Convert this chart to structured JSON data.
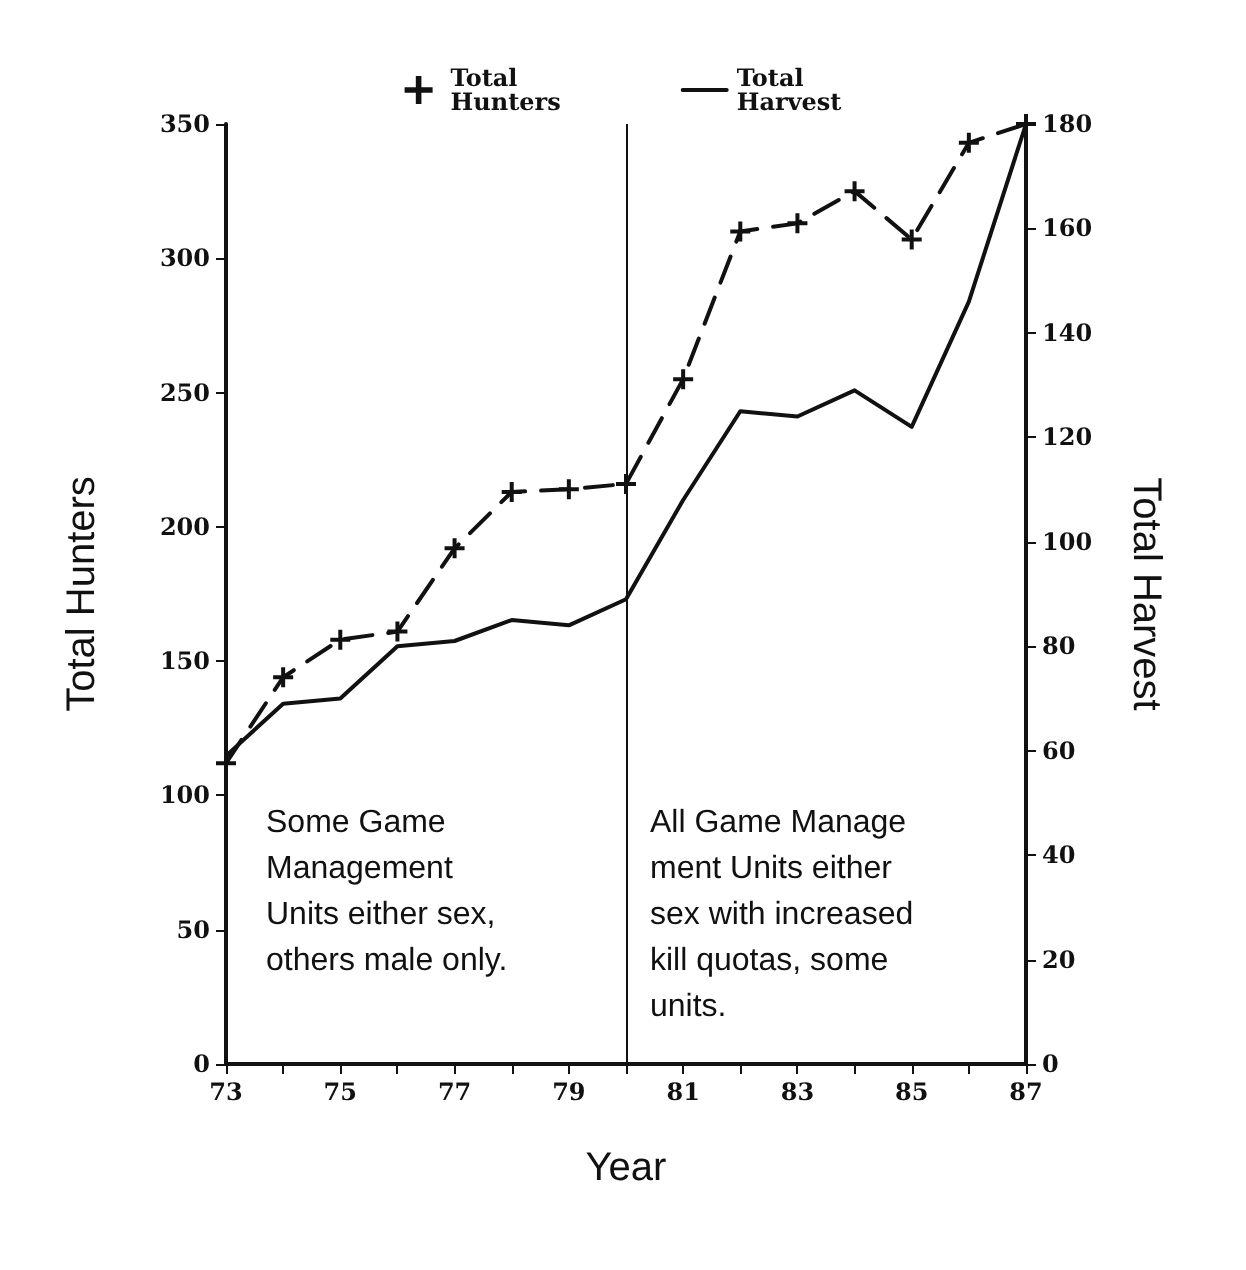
{
  "chart_data": {
    "type": "line",
    "xlabel": "Year",
    "ylabel": "Total Hunters",
    "y2label": "Total Harvest",
    "x": [
      73,
      74,
      75,
      76,
      77,
      78,
      79,
      80,
      81,
      82,
      83,
      84,
      85,
      86,
      87
    ],
    "series": [
      {
        "name": "Total Hunters",
        "color": "#111111",
        "marker": "cross",
        "line_style": "dashed",
        "values": [
          112,
          144,
          158,
          161,
          192,
          213,
          214,
          216,
          255,
          310,
          313,
          325,
          307,
          343,
          350
        ]
      },
      {
        "name": "Total Harvest",
        "color": "#111111",
        "marker": "none",
        "line_style": "solid",
        "axis": "y2",
        "values": [
          59,
          69,
          70,
          80,
          81,
          85,
          84,
          89,
          108,
          125,
          124,
          129,
          122,
          146,
          180
        ]
      }
    ],
    "xlim": [
      73,
      87
    ],
    "xticks": [
      73,
      {
        "value": 74,
        "label": null
      },
      75,
      {
        "value": 76,
        "label": null
      },
      77,
      {
        "value": 78,
        "label": null
      },
      79,
      {
        "value": 80,
        "label": null
      },
      81,
      {
        "value": 82,
        "label": null
      },
      83,
      {
        "value": 84,
        "label": null
      },
      85,
      {
        "value": 86,
        "label": null
      },
      87
    ],
    "ylim": [
      0,
      350
    ],
    "yticks": [
      0,
      50,
      100,
      150,
      200,
      250,
      300,
      350
    ],
    "y2lim": [
      0,
      180
    ],
    "y2ticks": [
      0,
      20,
      40,
      60,
      80,
      100,
      120,
      140,
      160,
      180
    ],
    "ref_lines": [
      {
        "axis": "x",
        "value": 80,
        "color": "#111111"
      }
    ],
    "annotations": [
      "Some Game\nManagement\nUnits either sex,\nothers male only.",
      "All Game Manage\nment Units either\nsex with increased\nkill quotas, some\nunits."
    ],
    "legend": "top",
    "grid": false
  }
}
